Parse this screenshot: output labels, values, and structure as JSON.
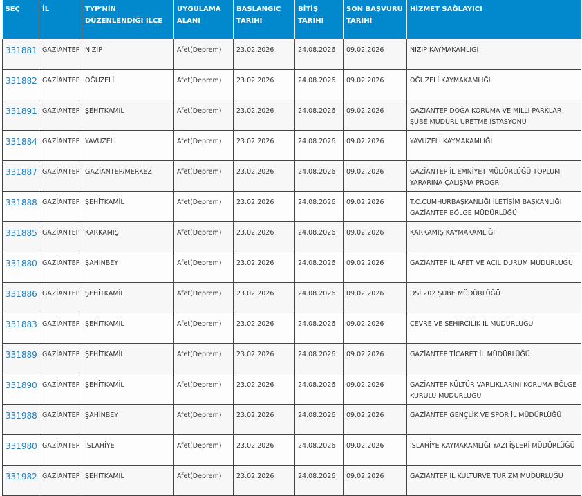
{
  "headers": {
    "sec": "SEÇ",
    "il": "İL",
    "ilce": "TYP'NİN DÜZENLENDİĞİ İLÇE",
    "alan": "UYGULAMA ALANI",
    "baslangic": "BAŞLANGIÇ TARİHİ",
    "bitis": "BİTİŞ TARİHİ",
    "son": "SON BAŞVURU TARİHİ",
    "hizmet": "HİZMET SAĞLAYICI"
  },
  "colors": {
    "header_bg": "#0288cc",
    "link": "#1f7fbf"
  },
  "rows": [
    {
      "id": "331881",
      "il": "GAZİANTEP",
      "ilce": "NİZİP",
      "alan": "Afet(Deprem)",
      "baslangic": "23.02.2026",
      "bitis": "24.08.2026",
      "son": "09.02.2026",
      "hizmet": "NİZİP KAYMAKAMLIĞI"
    },
    {
      "id": "331882",
      "il": "GAZİANTEP",
      "ilce": "OĞUZELİ",
      "alan": "Afet(Deprem)",
      "baslangic": "23.02.2026",
      "bitis": "24.08.2026",
      "son": "09.02.2026",
      "hizmet": "OĞUZELİ KAYMAKAMLIĞI"
    },
    {
      "id": "331891",
      "il": "GAZİANTEP",
      "ilce": "ŞEHİTKAMİL",
      "alan": "Afet(Deprem)",
      "baslangic": "23.02.2026",
      "bitis": "24.08.2026",
      "son": "09.02.2026",
      "hizmet": "GAZİANTEP DOĞA KORUMA VE MİLLİ PARKLAR ŞUBE MÜDÜRL ÜRETME İSTASYONU"
    },
    {
      "id": "331884",
      "il": "GAZİANTEP",
      "ilce": "YAVUZELİ",
      "alan": "Afet(Deprem)",
      "baslangic": "23.02.2026",
      "bitis": "24.08.2026",
      "son": "09.02.2026",
      "hizmet": "YAVUZELİ KAYMAKAMLIĞI"
    },
    {
      "id": "331887",
      "il": "GAZİANTEP",
      "ilce": "GAZİANTEP/MERKEZ",
      "alan": "Afet(Deprem)",
      "baslangic": "23.02.2026",
      "bitis": "24.08.2026",
      "son": "09.02.2026",
      "hizmet": "GAZİANTEP İL EMNİYET MÜDÜRLÜĞÜ TOPLUM YARARINA ÇALIŞMA PROGR"
    },
    {
      "id": "331888",
      "il": "GAZİANTEP",
      "ilce": "ŞEHİTKAMİL",
      "alan": "Afet(Deprem)",
      "baslangic": "23.02.2026",
      "bitis": "24.08.2026",
      "son": "09.02.2026",
      "hizmet": "T.C.CUMHURBAŞKANLIĞI İLETİŞİM BAŞKANLIĞI GAZİANTEP BÖLGE MÜDÜRLÜĞÜ"
    },
    {
      "id": "331885",
      "il": "GAZİANTEP",
      "ilce": "KARKAMIŞ",
      "alan": "Afet(Deprem)",
      "baslangic": "23.02.2026",
      "bitis": "24.08.2026",
      "son": "09.02.2026",
      "hizmet": "KARKAMIŞ KAYMAKAMLIĞI"
    },
    {
      "id": "331880",
      "il": "GAZİANTEP",
      "ilce": "ŞAHİNBEY",
      "alan": "Afet(Deprem)",
      "baslangic": "23.02.2026",
      "bitis": "24.08.2026",
      "son": "09.02.2026",
      "hizmet": "GAZİANTEP İL AFET VE ACİL DURUM MÜDÜRLÜĞÜ"
    },
    {
      "id": "331886",
      "il": "GAZİANTEP",
      "ilce": "ŞEHİTKAMİL",
      "alan": "Afet(Deprem)",
      "baslangic": "23.02.2026",
      "bitis": "24.08.2026",
      "son": "09.02.2026",
      "hizmet": "DSİ 202 ŞUBE MÜDÜRLÜĞÜ"
    },
    {
      "id": "331883",
      "il": "GAZİANTEP",
      "ilce": "ŞEHİTKAMİL",
      "alan": "Afet(Deprem)",
      "baslangic": "23.02.2026",
      "bitis": "24.08.2026",
      "son": "09.02.2026",
      "hizmet": "ÇEVRE VE ŞEHİRCİLİK İL MÜDÜRLÜĞÜ"
    },
    {
      "id": "331889",
      "il": "GAZİANTEP",
      "ilce": "ŞEHİTKAMİL",
      "alan": "Afet(Deprem)",
      "baslangic": "23.02.2026",
      "bitis": "24.08.2026",
      "son": "09.02.2026",
      "hizmet": "GAZİANTEP TİCARET İL MÜDÜRLÜĞÜ"
    },
    {
      "id": "331890",
      "il": "GAZİANTEP",
      "ilce": "ŞEHİTKAMİL",
      "alan": "Afet(Deprem)",
      "baslangic": "23.02.2026",
      "bitis": "24.08.2026",
      "son": "09.02.2026",
      "hizmet": "GAZİANTEP KÜLTÜR VARLIKLARINI KORUMA BÖLGE KURULU MÜDÜRLÜĞÜ"
    },
    {
      "id": "331988",
      "il": "GAZİANTEP",
      "ilce": "ŞAHİNBEY",
      "alan": "Afet(Deprem)",
      "baslangic": "23.02.2026",
      "bitis": "24.08.2026",
      "son": "09.02.2026",
      "hizmet": "GAZİANTEP GENÇLİK VE SPOR İL MÜDÜRLÜĞÜ"
    },
    {
      "id": "331980",
      "il": "GAZİANTEP",
      "ilce": "İSLAHİYE",
      "alan": "Afet(Deprem)",
      "baslangic": "23.02.2026",
      "bitis": "24.08.2026",
      "son": "09.02.2026",
      "hizmet": "İSLAHİYE KAYMAKAMLIĞI YAZI İŞLERİ MÜDÜRLÜĞÜ"
    },
    {
      "id": "331982",
      "il": "GAZİANTEP",
      "ilce": "ŞEHİTKAMİL",
      "alan": "Afet(Deprem)",
      "baslangic": "23.02.2026",
      "bitis": "24.08.2026",
      "son": "09.02.2026",
      "hizmet": "GAZİANTEP İL KÜLTÜRVE TURİZM MÜDÜRLÜĞÜ"
    }
  ]
}
